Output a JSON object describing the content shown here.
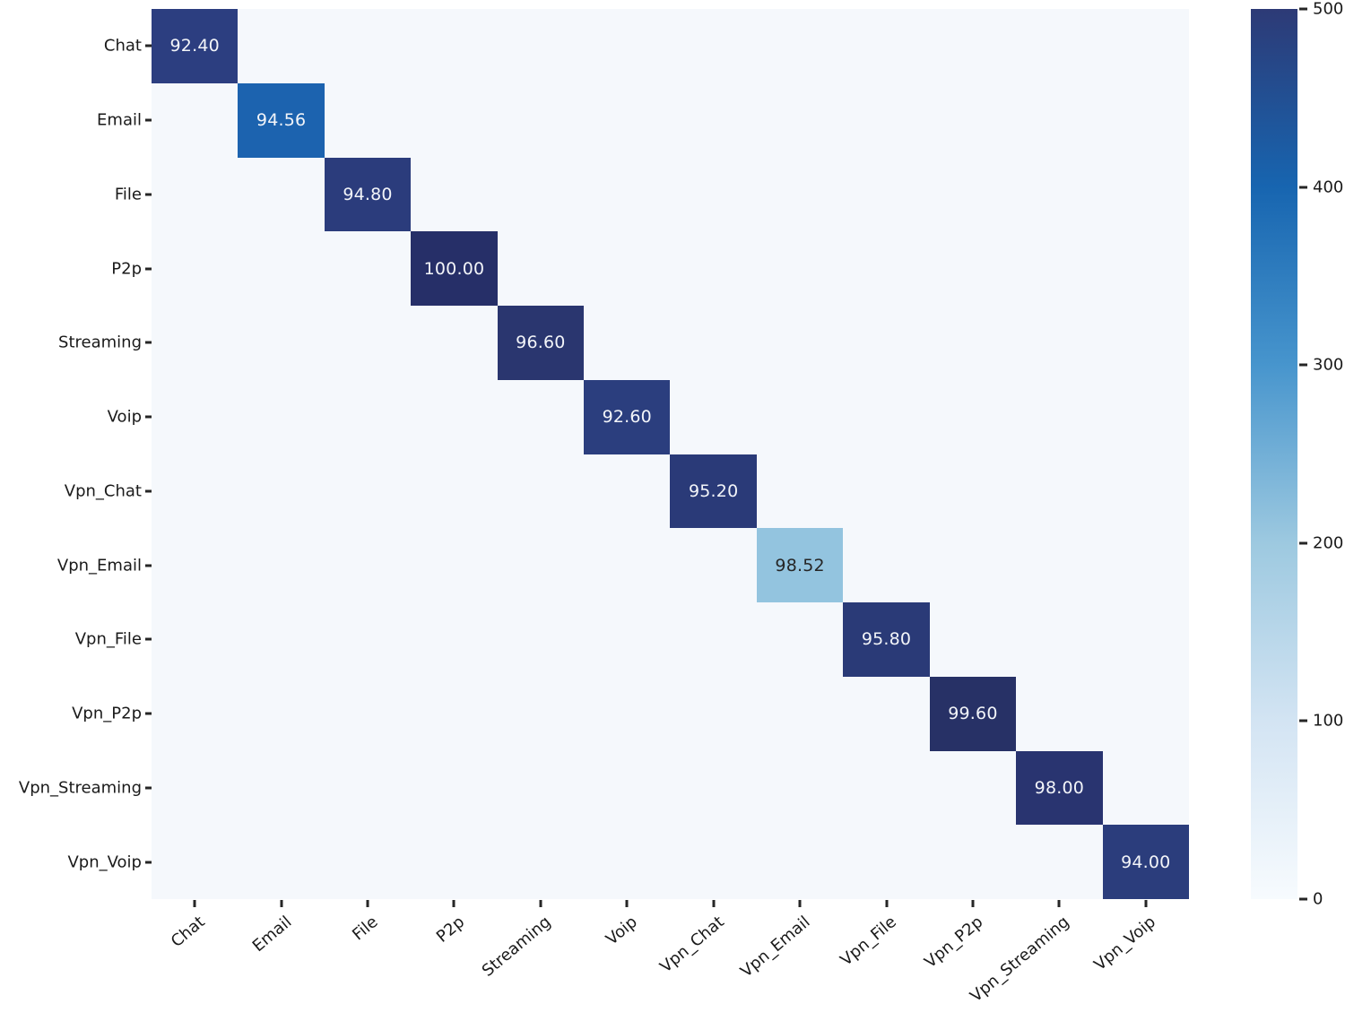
{
  "chart_data": {
    "type": "heatmap",
    "title": "",
    "xlabel": "",
    "ylabel": "",
    "x_labels": [
      "Chat",
      "Email",
      "File",
      "P2p",
      "Streaming",
      "Voip",
      "Vpn_Chat",
      "Vpn_Email",
      "Vpn_File",
      "Vpn_P2p",
      "Vpn_Streaming",
      "Vpn_Voip"
    ],
    "y_labels": [
      "Chat",
      "Email",
      "File",
      "P2p",
      "Streaming",
      "Voip",
      "Vpn_Chat",
      "Vpn_Email",
      "Vpn_File",
      "Vpn_P2p",
      "Vpn_Streaming",
      "Vpn_Voip"
    ],
    "annotation_note": "only diagonal cells are annotated, values are percentages; cell color encodes sample counts on the 0-500 colorbar scale",
    "diagonal": [
      {
        "label": "Chat",
        "value": "92.40",
        "color": "#2c3e80",
        "text_color": "#f3f5f9"
      },
      {
        "label": "Email",
        "value": "94.56",
        "color": "#1c63af",
        "text_color": "#f3f5f9"
      },
      {
        "label": "File",
        "value": "94.80",
        "color": "#2b3c7c",
        "text_color": "#f3f5f9"
      },
      {
        "label": "P2p",
        "value": "100.00",
        "color": "#262f68",
        "text_color": "#f3f5f9"
      },
      {
        "label": "Streaming",
        "value": "96.60",
        "color": "#2a366f",
        "text_color": "#f3f5f9"
      },
      {
        "label": "Voip",
        "value": "92.60",
        "color": "#2b3e7e",
        "text_color": "#f3f5f9"
      },
      {
        "label": "Vpn_Chat",
        "value": "95.20",
        "color": "#2a3a78",
        "text_color": "#f3f5f9"
      },
      {
        "label": "Vpn_Email",
        "value": "98.52",
        "color": "#93c4df",
        "text_color": "#262626"
      },
      {
        "label": "Vpn_File",
        "value": "95.80",
        "color": "#2a3a77",
        "text_color": "#f3f5f9"
      },
      {
        "label": "Vpn_P2p",
        "value": "99.60",
        "color": "#273166",
        "text_color": "#f3f5f9"
      },
      {
        "label": "Vpn_Streaming",
        "value": "98.00",
        "color": "#293470",
        "text_color": "#f3f5f9"
      },
      {
        "label": "Vpn_Voip",
        "value": "94.00",
        "color": "#2b3d7c",
        "text_color": "#f3f5f9"
      }
    ],
    "off_diagonal_color": "#f5f8fc",
    "colorbar": {
      "min": 0,
      "max": 500,
      "tick_labels": [
        "500",
        "400",
        "300",
        "200",
        "100",
        "0"
      ],
      "gradient_bottom_to_top": [
        "#f7fbfe",
        "#d3e4f3",
        "#9dc9e0",
        "#4795cd",
        "#1765b0",
        "#2d3a76"
      ],
      "position": "right"
    },
    "grid": false,
    "legend": false
  }
}
